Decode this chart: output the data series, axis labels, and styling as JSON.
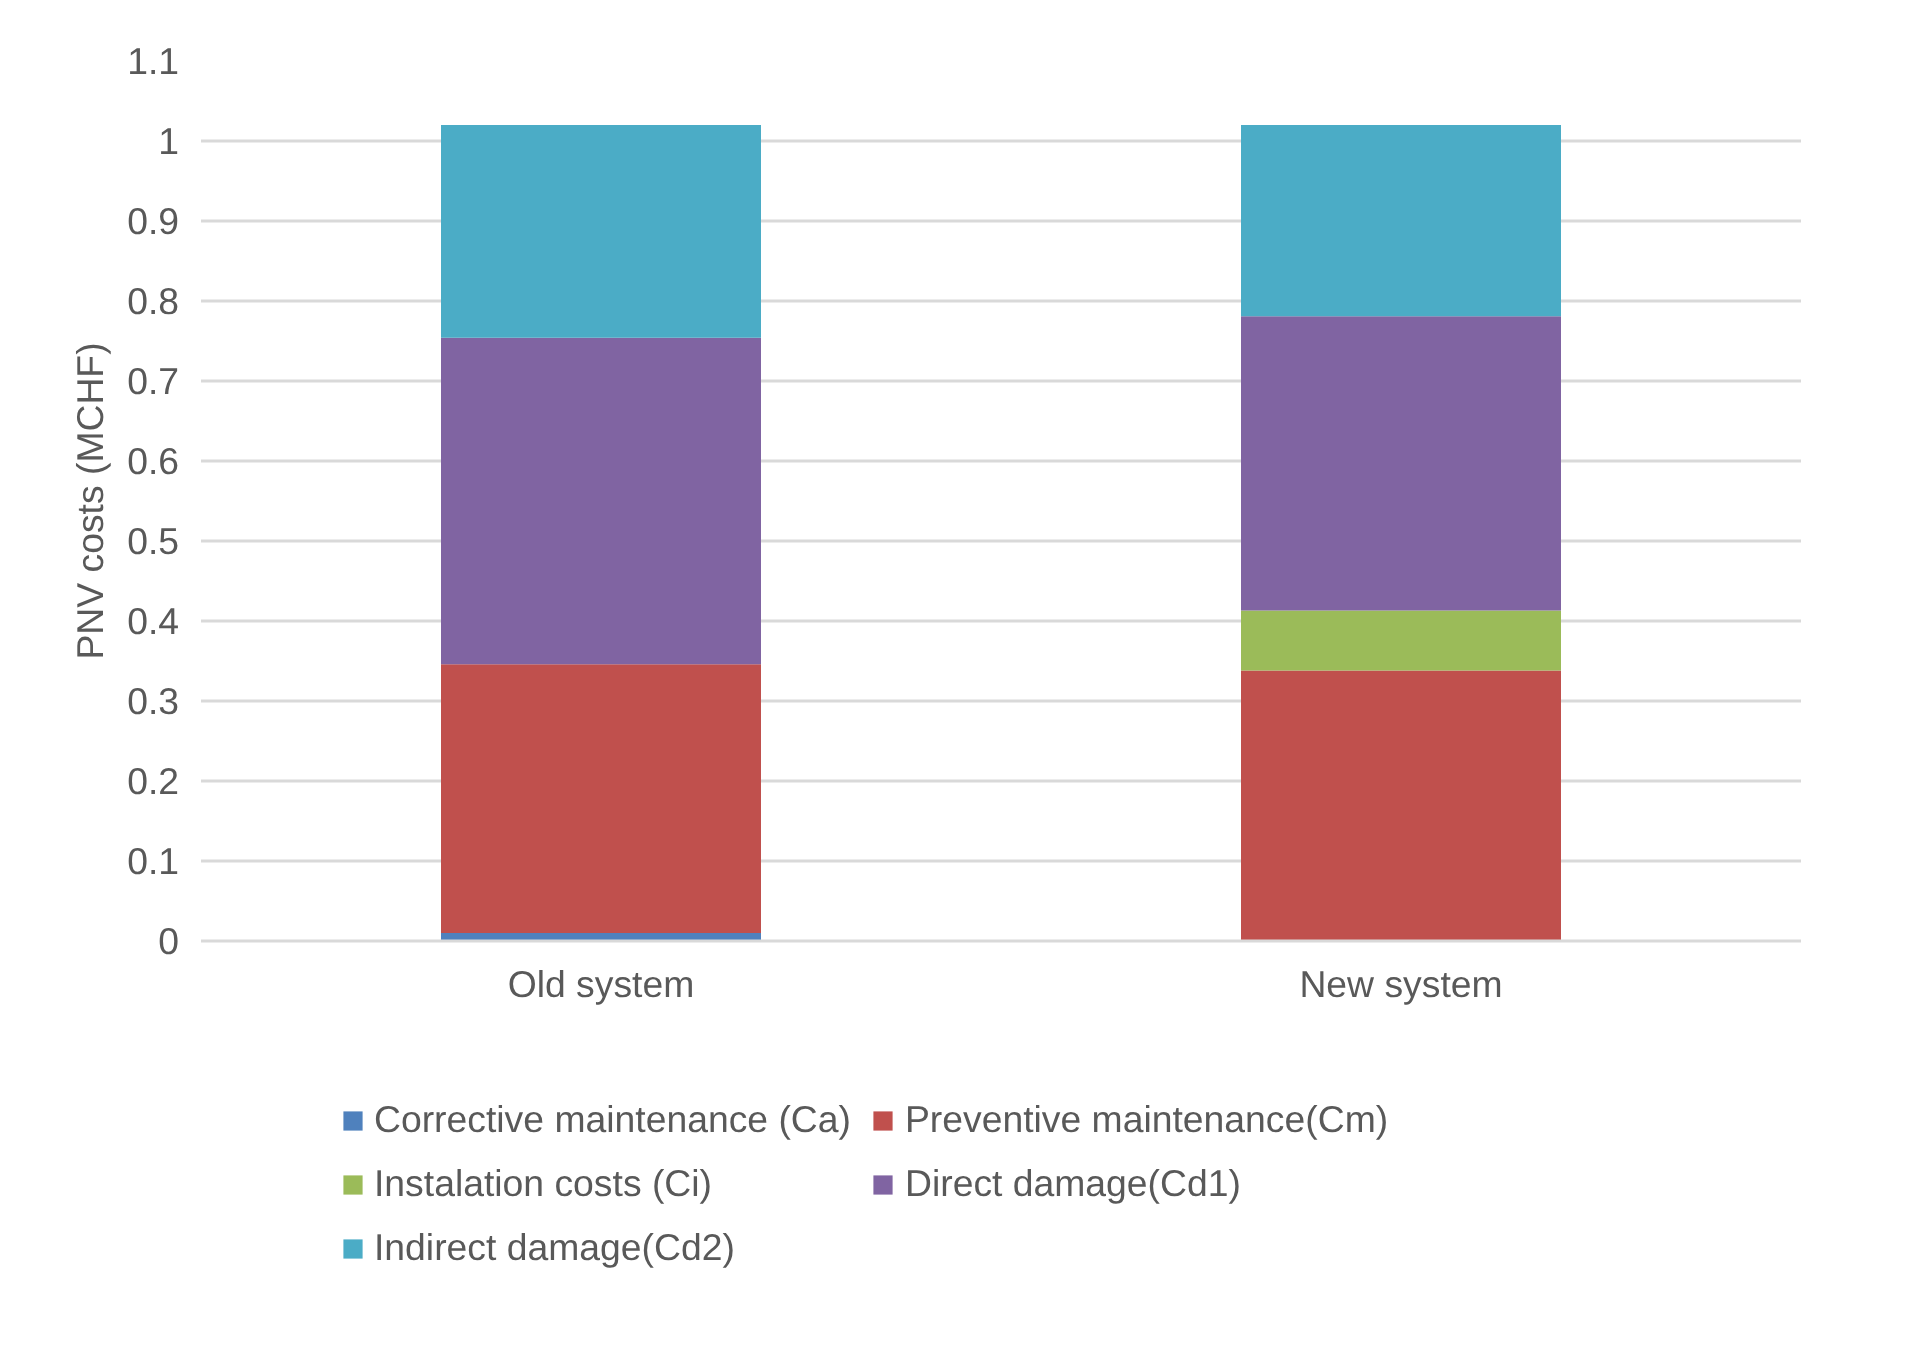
{
  "chart_data": {
    "type": "bar",
    "stacked": true,
    "ylabel": "PNV costs (MCHF)",
    "categories": [
      "Old system",
      "New system"
    ],
    "series": [
      {
        "name": "Corrective maintenance (Ca)",
        "color": "#4f81bd",
        "values": [
          0.01,
          0
        ]
      },
      {
        "name": "Preventive maintenance(Cm)",
        "color": "#c0504d",
        "values": [
          0.336,
          0.338
        ]
      },
      {
        "name": "Instalation costs (Ci)",
        "color": "#9bbb59",
        "values": [
          0,
          0.075
        ]
      },
      {
        "name": "Direct damage(Cd1)",
        "color": "#8064a2",
        "values": [
          0.408,
          0.368
        ]
      },
      {
        "name": "Indirect damage(Cd2)",
        "color": "#4bacc6",
        "values": [
          0.266,
          0.239
        ]
      }
    ],
    "ylim": [
      0,
      1.1
    ],
    "yticks": [
      0,
      {
        "value": 0.1,
        "label": "0.1"
      },
      {
        "value": 0.2,
        "label": "0.2"
      },
      {
        "value": 0.3,
        "label": "0.3"
      },
      {
        "value": 0.4,
        "label": "0.4"
      },
      {
        "value": 0.5,
        "label": "0.5"
      },
      {
        "value": 0.6,
        "label": "0.6"
      },
      {
        "value": 0.7,
        "label": "0.7"
      },
      {
        "value": 0.8,
        "label": "0.8"
      },
      {
        "value": 0.9,
        "label": "0.9"
      },
      1,
      {
        "value": 1.1,
        "label": "1.1"
      }
    ],
    "grid": "y",
    "legend": "bottom"
  }
}
